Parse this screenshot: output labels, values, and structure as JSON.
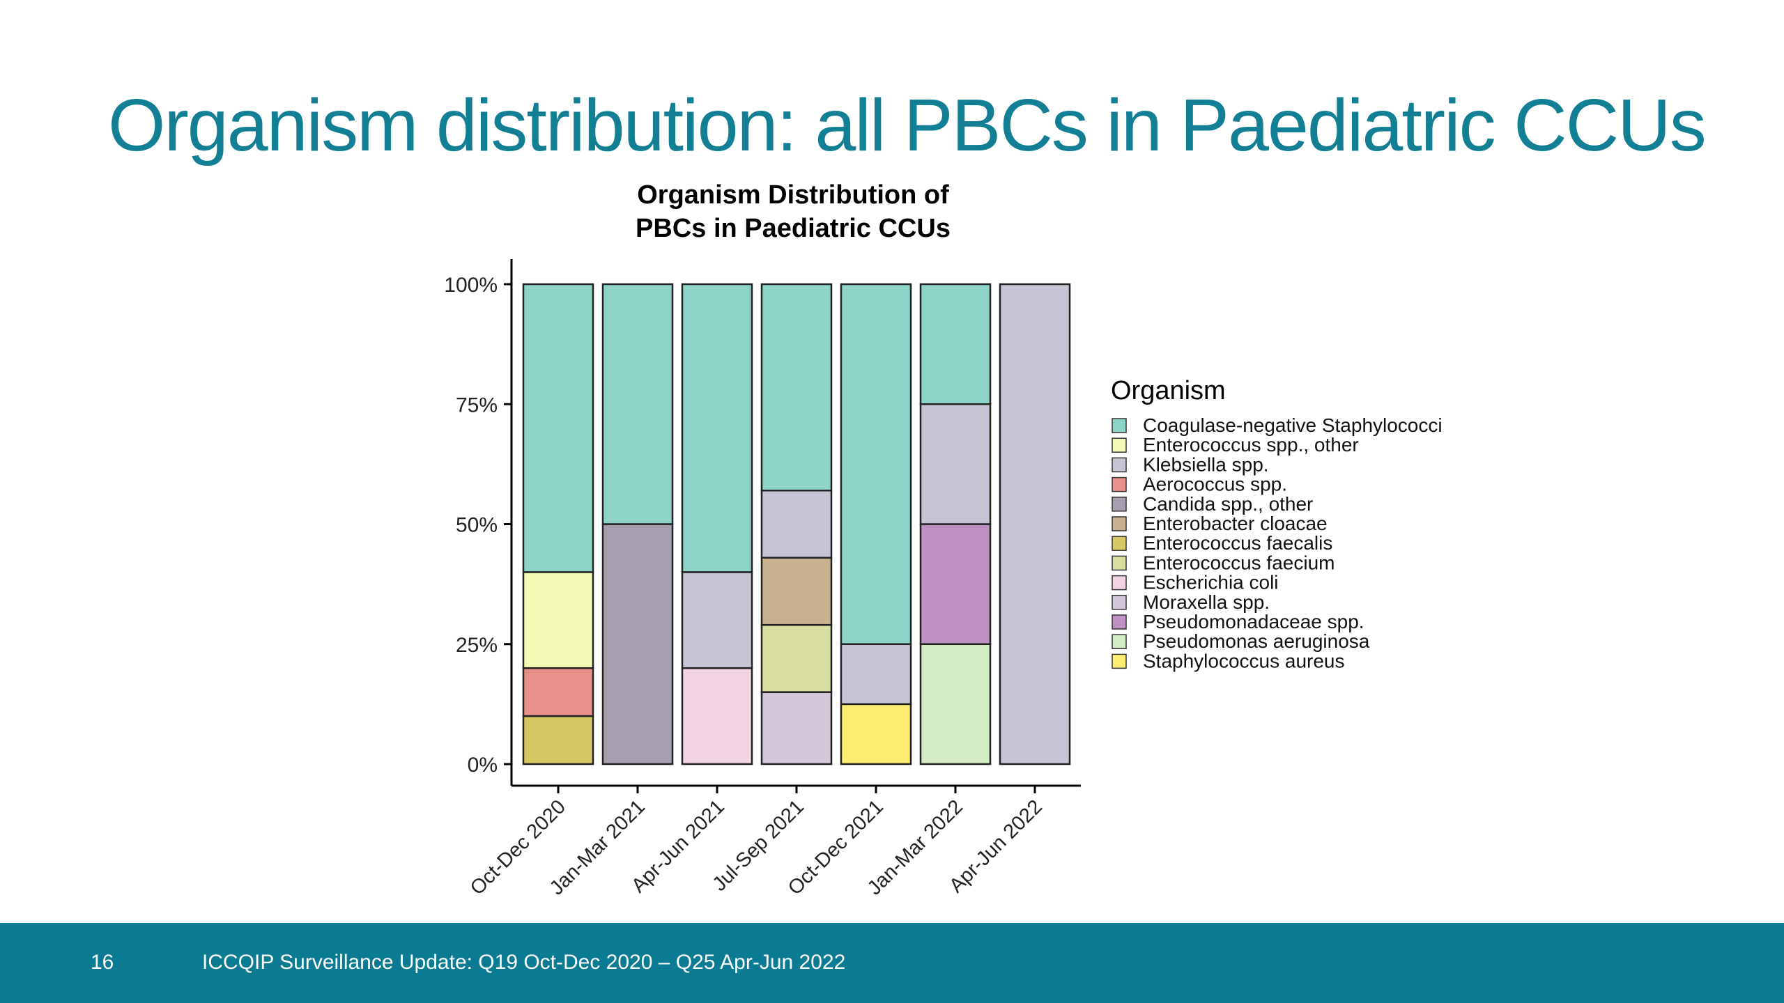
{
  "slide": {
    "title": "Organism distribution: all PBCs in Paediatric CCUs",
    "page_number": "16",
    "footer_text": "ICCQIP Surveillance Update: Q19 Oct-Dec 2020 – Q25 Apr-Jun 2022"
  },
  "chart_data": {
    "type": "bar",
    "stacked": true,
    "title_lines": [
      "Organism Distribution of",
      "PBCs in Paediatric CCUs"
    ],
    "xlabel": "",
    "ylabel": "",
    "ylim": [
      0,
      100
    ],
    "yticks": [
      0,
      25,
      50,
      75,
      100
    ],
    "ytick_labels": [
      "0%",
      "25%",
      "50%",
      "75%",
      "100%"
    ],
    "legend_title": "Organism",
    "legend_position": "right",
    "categories": [
      "Oct-Dec 2020",
      "Jan-Mar 2021",
      "Apr-Jun 2021",
      "Jul-Sep 2021",
      "Oct-Dec 2021",
      "Jan-Mar 2022",
      "Apr-Jun 2022"
    ],
    "series": [
      {
        "name": "Coagulase-negative Staphylococci",
        "color": "#8dd3c7",
        "values": [
          60,
          50,
          60,
          43,
          75,
          25,
          0
        ]
      },
      {
        "name": "Enterococcus spp., other",
        "color": "#f4f9b5",
        "values": [
          20,
          0,
          0,
          0,
          0,
          0,
          0
        ]
      },
      {
        "name": "Klebsiella spp.",
        "color": "#c7c5d5",
        "values": [
          0,
          0,
          20,
          14,
          12.5,
          25,
          100
        ]
      },
      {
        "name": "Aerococcus spp.",
        "color": "#e8918a",
        "values": [
          10,
          0,
          0,
          0,
          0,
          0,
          0
        ]
      },
      {
        "name": "Candida spp., other",
        "color": "#a69fb0",
        "values": [
          0,
          50,
          0,
          0,
          0,
          0,
          0
        ]
      },
      {
        "name": "Enterobacter cloacae",
        "color": "#c8b18e",
        "values": [
          0,
          0,
          0,
          14,
          0,
          0,
          0
        ]
      },
      {
        "name": "Enterococcus faecalis",
        "color": "#d8c865",
        "values": [
          10,
          0,
          0,
          0,
          0,
          0,
          0
        ]
      },
      {
        "name": "Enterococcus faecium",
        "color": "#d8dda1",
        "values": [
          0,
          0,
          0,
          14,
          0,
          0,
          0
        ]
      },
      {
        "name": "Escherichia coli",
        "color": "#f2d3e3",
        "values": [
          0,
          0,
          20,
          0,
          0,
          0,
          0
        ]
      },
      {
        "name": "Moraxella spp.",
        "color": "#d3c6d8",
        "values": [
          0,
          0,
          0,
          15,
          0,
          0,
          0
        ]
      },
      {
        "name": "Pseudomonadaceae spp.",
        "color": "#bf91c2",
        "values": [
          0,
          0,
          0,
          0,
          0,
          25,
          0
        ]
      },
      {
        "name": "Pseudomonas aeruginosa",
        "color": "#d4ecc3",
        "values": [
          0,
          0,
          0,
          0,
          0,
          25,
          0
        ]
      },
      {
        "name": "Staphylococcus aureus",
        "color": "#fdec72",
        "values": [
          0,
          0,
          0,
          0,
          12.5,
          0,
          0
        ]
      }
    ]
  }
}
